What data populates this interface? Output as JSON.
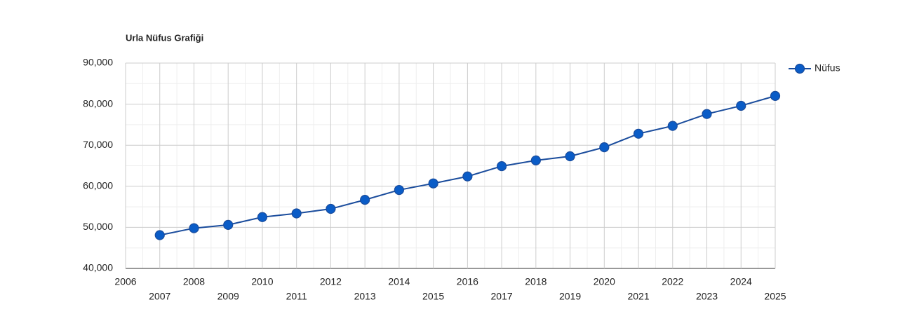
{
  "chart_data": {
    "type": "line",
    "title": "Urla Nüfus Grafiği",
    "x": [
      2007,
      2008,
      2009,
      2010,
      2011,
      2012,
      2013,
      2014,
      2015,
      2016,
      2017,
      2018,
      2019,
      2020,
      2021,
      2022,
      2023,
      2024,
      2025
    ],
    "series": [
      {
        "name": "Nüfus",
        "color": "#0a5cc7",
        "values": [
          48100,
          49800,
          50600,
          52500,
          53400,
          54500,
          56700,
          59100,
          60700,
          62400,
          64900,
          66300,
          67300,
          69500,
          72800,
          74700,
          77600,
          79600,
          82000
        ]
      }
    ],
    "xlim": [
      2006,
      2025
    ],
    "xticks": [
      2006,
      2007,
      2008,
      2009,
      2010,
      2011,
      2012,
      2013,
      2014,
      2015,
      2016,
      2017,
      2018,
      2019,
      2020,
      2021,
      2022,
      2023,
      2024,
      2025
    ],
    "ylim": [
      40000,
      90000
    ],
    "yticks": [
      {
        "value": 40000,
        "label": "40,000"
      },
      {
        "value": 50000,
        "label": "50,000"
      },
      {
        "value": 60000,
        "label": "60,000"
      },
      {
        "value": 70000,
        "label": "70,000"
      },
      {
        "value": 80000,
        "label": "80,000"
      },
      {
        "value": 90000,
        "label": "90,000"
      }
    ],
    "grid": true,
    "legend": "right"
  }
}
